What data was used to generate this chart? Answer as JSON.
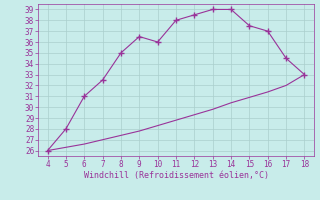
{
  "upper_x": [
    4,
    5,
    6,
    7,
    8,
    9,
    10,
    11,
    12,
    13,
    14,
    15,
    16,
    17,
    18
  ],
  "upper_y": [
    26,
    28,
    31,
    32.5,
    35,
    36.5,
    36,
    38,
    38.5,
    39,
    39,
    37.5,
    37,
    34.5,
    33
  ],
  "lower_x": [
    4,
    5,
    6,
    7,
    8,
    9,
    10,
    11,
    12,
    13,
    14,
    15,
    16,
    17,
    18
  ],
  "lower_y": [
    26,
    26.3,
    26.6,
    27.0,
    27.4,
    27.8,
    28.3,
    28.8,
    29.3,
    29.8,
    30.4,
    30.9,
    31.4,
    32.0,
    33
  ],
  "line_color": "#993399",
  "bg_color": "#c8ecea",
  "grid_color": "#aacfcd",
  "xlabel": "Windchill (Refroidissement éolien,°C)",
  "xlim": [
    3.5,
    18.5
  ],
  "ylim": [
    25.5,
    39.5
  ],
  "xticks": [
    4,
    5,
    6,
    7,
    8,
    9,
    10,
    11,
    12,
    13,
    14,
    15,
    16,
    17,
    18
  ],
  "yticks": [
    26,
    27,
    28,
    29,
    30,
    31,
    32,
    33,
    34,
    35,
    36,
    37,
    38,
    39
  ],
  "tick_color": "#993399",
  "xlabel_color": "#993399",
  "marker": "+",
  "markersize": 4,
  "linewidth": 0.8
}
